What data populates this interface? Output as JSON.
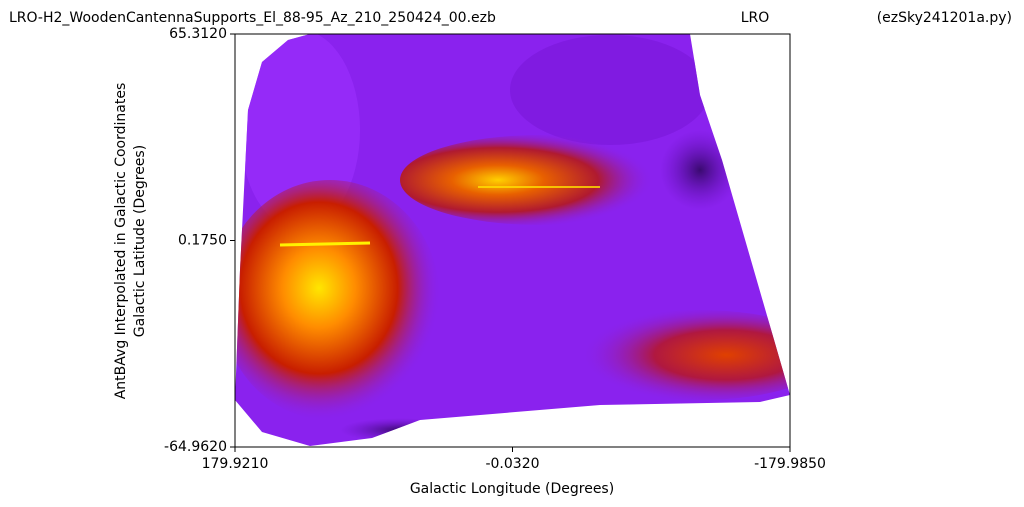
{
  "chart_data": {
    "type": "heatmap",
    "title": [
      "LRO-H2_WoodenCantennaSupports_El_88-95_Az_210_250424_00.ezb",
      "LRO",
      "(ezSky241201a.py)"
    ],
    "xlabel": "Galactic Longitude (Degrees)",
    "ylabel": [
      "AntBAvg Interpolated in Galactic Coordinates",
      "Galactic Latitude (Degrees)"
    ],
    "xlim": [
      179.921,
      -179.985
    ],
    "xticks": [
      {
        "value": 179.921,
        "label": "179.9210"
      },
      {
        "value": -0.032,
        "label": "-0.0320"
      },
      {
        "value": -179.985,
        "label": "-179.9850"
      }
    ],
    "ylim": [
      -64.962,
      65.312
    ],
    "yticks": [
      {
        "value": 65.312,
        "label": "65.3120"
      },
      {
        "value": 0.175,
        "label": "0.1750"
      },
      {
        "value": -64.962,
        "label": "-64.9620"
      }
    ],
    "colormap": "gnuplot"
  }
}
